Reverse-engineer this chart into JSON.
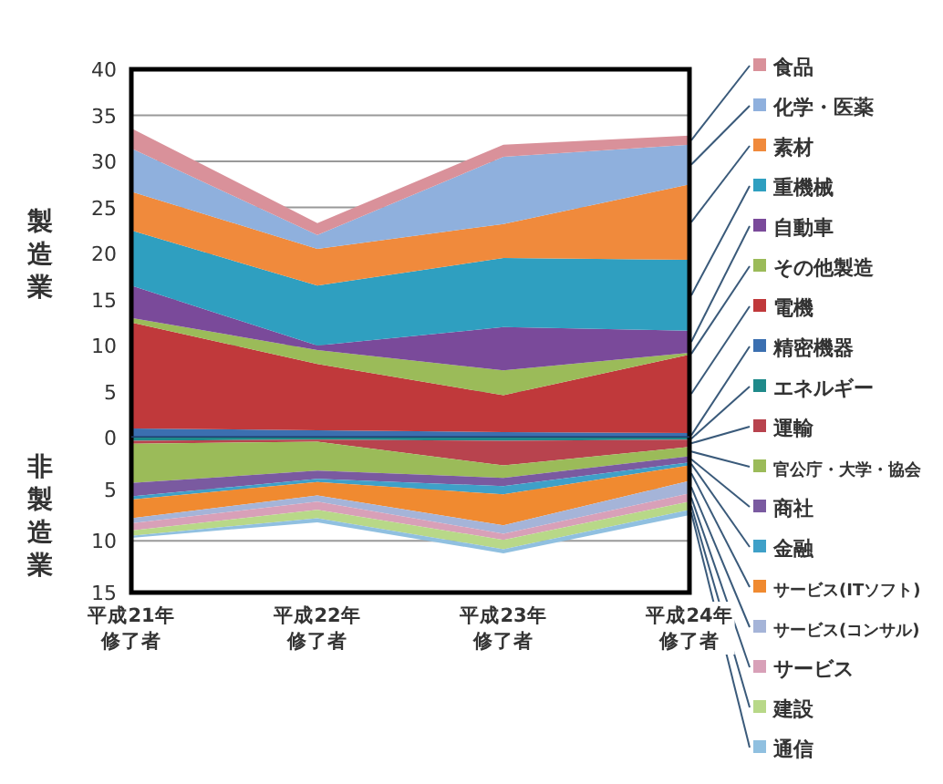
{
  "chart_data": [
    {
      "type": "area",
      "stacked": true,
      "ylabel": "製造業",
      "tick_labels": "y",
      "ylim": [
        0,
        40
      ],
      "yticks": [
        0,
        5,
        10,
        15,
        20,
        25,
        30,
        35,
        40
      ],
      "grid": "y",
      "legend": "right",
      "series": [
        {
          "name": "精密機器",
          "color": "#3b6fb0",
          "values": [
            1,
            0.8,
            0.6,
            0.5
          ]
        },
        {
          "name": "電機",
          "color": "#c0393b",
          "values": [
            11.5,
            7.2,
            4.0,
            8.5
          ]
        },
        {
          "name": "その他製造",
          "color": "#9bbb59",
          "values": [
            0.5,
            1.5,
            2.7,
            0.2
          ]
        },
        {
          "name": "自動車",
          "color": "#7a4a9a",
          "values": [
            3.5,
            0.5,
            4.7,
            2.4
          ]
        },
        {
          "name": "重機械",
          "color": "#2f9fc0",
          "values": [
            6.0,
            6.5,
            7.5,
            7.7
          ]
        },
        {
          "name": "素材",
          "color": "#f08a3c",
          "values": [
            4.2,
            4.0,
            3.7,
            8.2
          ]
        },
        {
          "name": "化学・医薬",
          "color": "#8fb0dd",
          "values": [
            4.7,
            1.5,
            7.3,
            4.3
          ]
        },
        {
          "name": "食品",
          "color": "#d9919a",
          "values": [
            2.2,
            1.3,
            1.3,
            1.0
          ]
        }
      ]
    },
    {
      "type": "area",
      "stacked": true,
      "ylabel": "非製造業",
      "categories": [
        "平成21年修了者",
        "平成22年修了者",
        "平成23年修了者",
        "平成24年修了者"
      ],
      "ylim": [
        15,
        0
      ],
      "yticks": [
        5,
        10,
        15
      ],
      "grid": "y",
      "legend": "right",
      "series": [
        {
          "name": "エネルギー",
          "color": "#1f8a8a",
          "values": [
            0.3,
            0.2,
            0.3,
            0.2
          ]
        },
        {
          "name": "運輸",
          "color": "#b8434e",
          "values": [
            0.3,
            0.2,
            2.4,
            0.7
          ]
        },
        {
          "name": "官公庁・大学・協会",
          "color": "#9bbb59",
          "values": [
            3.8,
            2.8,
            1.2,
            0.9
          ]
        },
        {
          "name": "商社",
          "color": "#7a5aa0",
          "values": [
            1.3,
            0.8,
            0.8,
            0.6
          ]
        },
        {
          "name": "金融",
          "color": "#3fa0c8",
          "values": [
            0.3,
            0.3,
            0.8,
            0.3
          ]
        },
        {
          "name": "サービス(ITソフト)",
          "color": "#f08a30",
          "values": [
            1.8,
            1.3,
            3.0,
            1.5
          ]
        },
        {
          "name": "サービス(コンサル)",
          "color": "#a5b4d8",
          "values": [
            0.5,
            0.6,
            0.8,
            1.2
          ]
        },
        {
          "name": "サービス",
          "color": "#d8a0b8",
          "values": [
            0.7,
            0.8,
            0.6,
            0.8
          ]
        },
        {
          "name": "建設",
          "color": "#b8d888",
          "values": [
            0.5,
            0.8,
            0.9,
            0.8
          ]
        },
        {
          "name": "通信",
          "color": "#90c0e0",
          "values": [
            0.2,
            0.4,
            0.4,
            0.5
          ]
        }
      ]
    }
  ]
}
